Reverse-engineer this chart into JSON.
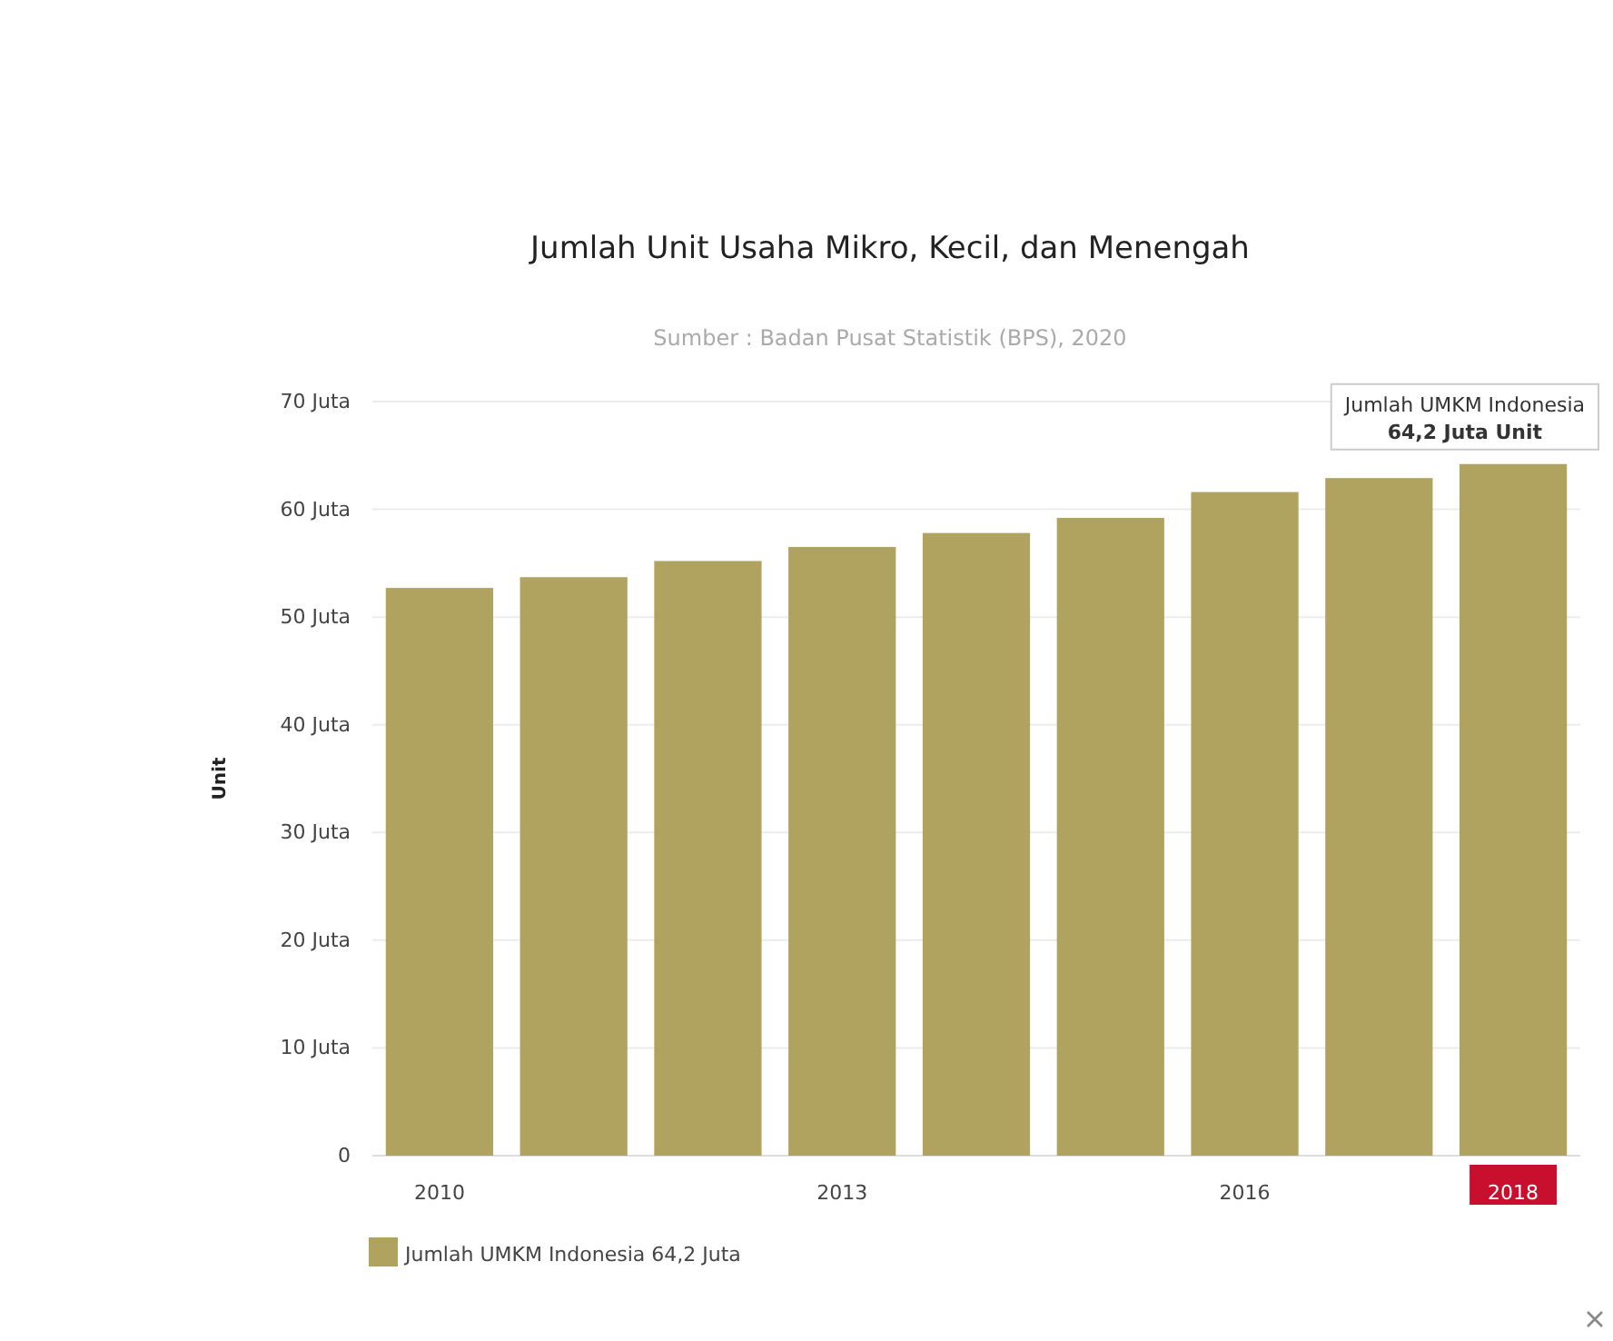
{
  "chart_data": {
    "type": "bar",
    "title": "Jumlah Unit Usaha Mikro, Kecil, dan Menengah",
    "subtitle": "Sumber : Badan Pusat Statistik (BPS), 2020",
    "ylabel": "Unit",
    "categories": [
      "2010",
      null,
      null,
      "2013",
      null,
      null,
      "2016",
      null,
      "2018"
    ],
    "series": [
      {
        "name": "Jumlah UMKM Indonesia 64,2 Juta",
        "color": "#b0a25f",
        "values": [
          52.7,
          53.7,
          55.2,
          56.5,
          57.8,
          59.2,
          61.6,
          62.9,
          64.2
        ]
      }
    ],
    "ylim": [
      0,
      70
    ],
    "yticks": [
      {
        "value": 0,
        "label": "0"
      },
      {
        "value": 10,
        "label": "10 Juta"
      },
      {
        "value": 20,
        "label": "20 Juta"
      },
      {
        "value": 30,
        "label": "30 Juta"
      },
      {
        "value": 40,
        "label": "40 Juta"
      },
      {
        "value": 50,
        "label": "50 Juta"
      },
      {
        "value": 60,
        "label": "60 Juta"
      },
      {
        "value": 70,
        "label": "70 Juta"
      }
    ],
    "annotations": [
      {
        "text": "Jumlah UMKM Indonesia\n64,2 Juta Unit",
        "x": "2018",
        "y": 64.2
      }
    ],
    "grid": "y",
    "legend": "bottom left"
  }
}
